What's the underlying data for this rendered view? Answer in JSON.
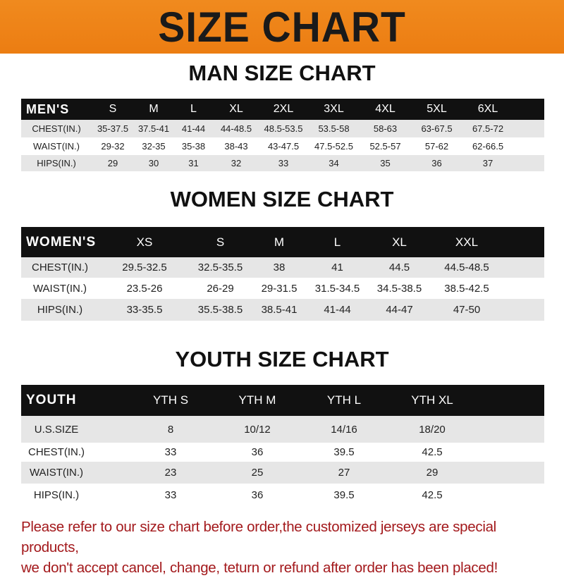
{
  "banner_title": "SIZE CHART",
  "colors": {
    "banner": "#ec7d12",
    "header_row": "#111111",
    "alt_row": "#e6e6e6",
    "note": "#a3191c"
  },
  "men": {
    "title": "MAN SIZE CHART",
    "header": [
      "MEN'S",
      "S",
      "M",
      "L",
      "XL",
      "2XL",
      "3XL",
      "4XL",
      "5XL",
      "6XL"
    ],
    "rows": [
      [
        "CHEST(IN.)",
        "35-37.5",
        "37.5-41",
        "41-44",
        "44-48.5",
        "48.5-53.5",
        "53.5-58",
        "58-63",
        "63-67.5",
        "67.5-72"
      ],
      [
        "WAIST(IN.)",
        "29-32",
        "32-35",
        "35-38",
        "38-43",
        "43-47.5",
        "47.5-52.5",
        "52.5-57",
        "57-62",
        "62-66.5"
      ],
      [
        "HIPS(IN.)",
        "29",
        "30",
        "31",
        "32",
        "33",
        "34",
        "35",
        "36",
        "37"
      ]
    ]
  },
  "women": {
    "title": "WOMEN SIZE CHART",
    "header": [
      "WOMEN'S",
      "XS",
      "S",
      "M",
      "L",
      "XL",
      "XXL"
    ],
    "rows": [
      [
        "CHEST(IN.)",
        "29.5-32.5",
        "32.5-35.5",
        "38",
        "41",
        "44.5",
        "44.5-48.5"
      ],
      [
        "WAIST(IN.)",
        "23.5-26",
        "26-29",
        "29-31.5",
        "31.5-34.5",
        "34.5-38.5",
        "38.5-42.5"
      ],
      [
        "HIPS(IN.)",
        "33-35.5",
        "35.5-38.5",
        "38.5-41",
        "41-44",
        "44-47",
        "47-50"
      ]
    ]
  },
  "youth": {
    "title": "YOUTH SIZE CHART",
    "header": [
      "YOUTH",
      "YTH S",
      "YTH M",
      "YTH L",
      "YTH XL"
    ],
    "rows": [
      [
        "U.S.SIZE",
        "8",
        "10/12",
        "14/16",
        "18/20"
      ],
      [
        "CHEST(IN.)",
        "33",
        "36",
        "39.5",
        "42.5"
      ],
      [
        "WAIST(IN.)",
        "23",
        "25",
        "27",
        "29"
      ],
      [
        "HIPS(IN.)",
        "33",
        "36",
        "39.5",
        "42.5"
      ]
    ]
  },
  "note": {
    "line1": "Please refer to our size chart before order,the customized jerseys are special products,",
    "line2": "we don't accept cancel, change, teturn or refund after order has been placed!"
  }
}
